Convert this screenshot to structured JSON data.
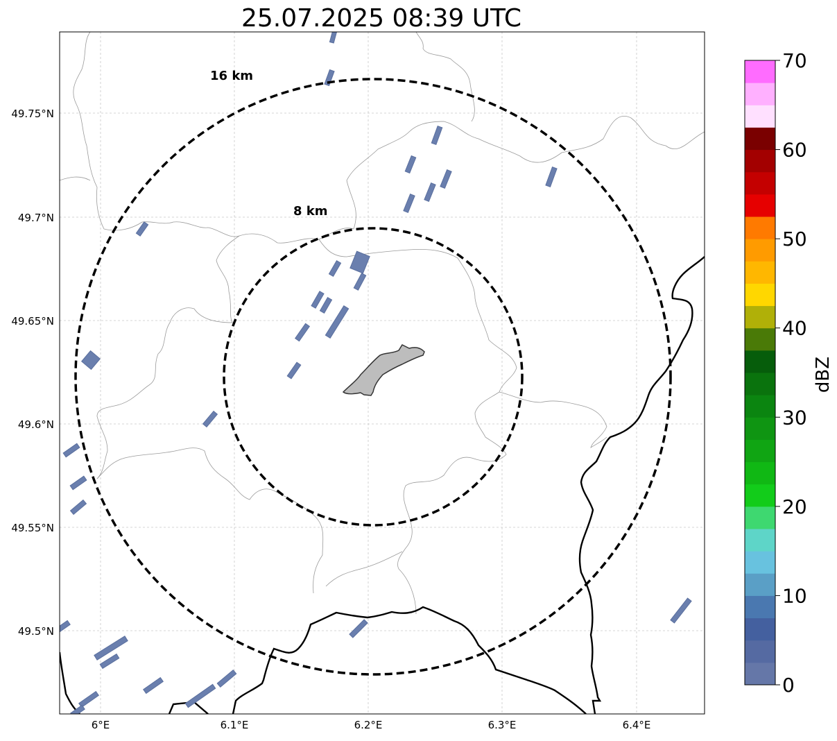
{
  "title": "25.07.2025 08:39 UTC",
  "map": {
    "lon_ticks": [
      "6°E",
      "6.1°E",
      "6.2°E",
      "6.3°E",
      "6.4°E"
    ],
    "lat_ticks": [
      "49.75°N",
      "49.7°N",
      "49.65°N",
      "49.6°N",
      "49.55°N",
      "49.5°N"
    ],
    "range_rings": [
      {
        "label": "8 km",
        "radius_km": 8
      },
      {
        "label": "16 km",
        "radius_km": 16
      }
    ],
    "center": {
      "lon": 6.2,
      "lat": 49.623
    },
    "colors": {
      "echo": "#6a7fae",
      "echo_edge": "#5a6f9e",
      "landmark_fill": "#bdbdbd",
      "landmark_edge": "#333333",
      "border_major": "#000000",
      "border_minor": "#9a9a9a",
      "grid": "#c8c8c8"
    }
  },
  "colorbar": {
    "label": "dBZ",
    "ticks": [
      "0",
      "10",
      "20",
      "30",
      "40",
      "50",
      "60",
      "70"
    ],
    "min": 0,
    "max": 70,
    "step": 2.5,
    "colors": [
      "#6577a8",
      "#556aa2",
      "#44609f",
      "#4a78b0",
      "#5a9fc6",
      "#68c2df",
      "#5ed5c8",
      "#3ed870",
      "#12cc1a",
      "#10b814",
      "#10a513",
      "#0f9512",
      "#0b8510",
      "#0a730d",
      "#065d0b",
      "#4a7a07",
      "#b0b008",
      "#ffd700",
      "#ffb700",
      "#ff9b00",
      "#ff7a00",
      "#e60000",
      "#c40000",
      "#a30000",
      "#7a0000",
      "#ffe0ff",
      "#ffb0ff",
      "#ff6cff",
      "#f030f0"
    ]
  }
}
